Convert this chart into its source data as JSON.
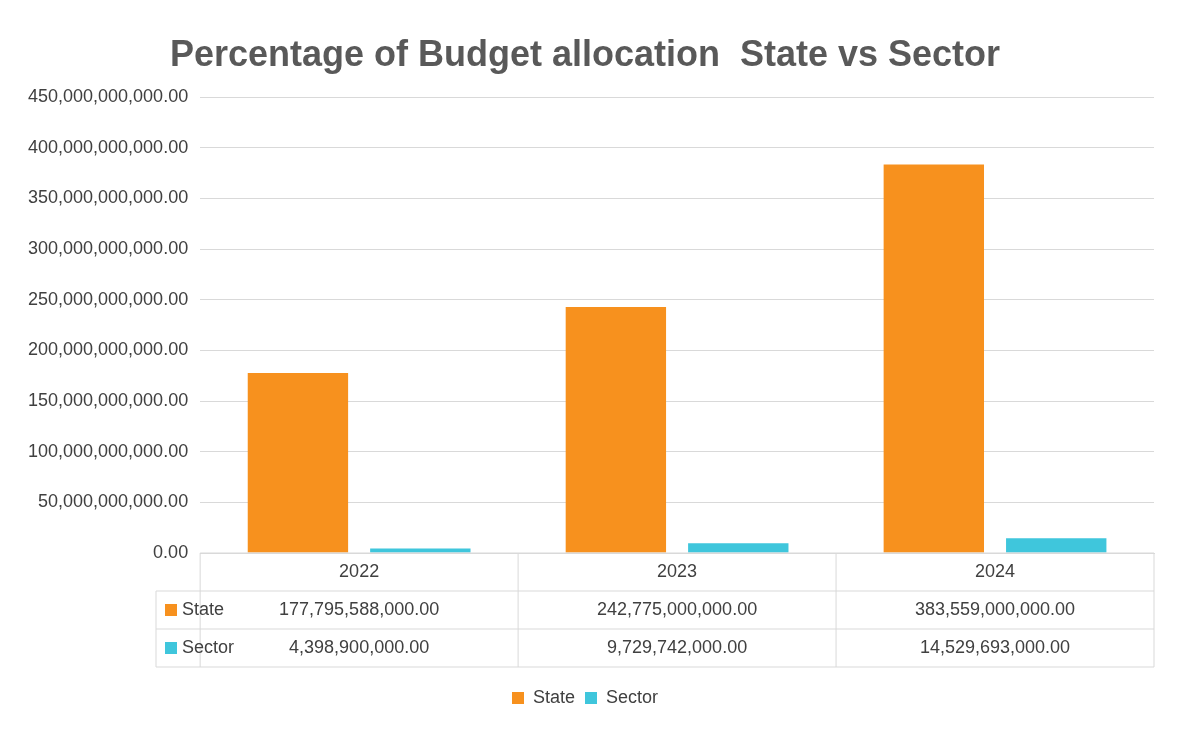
{
  "chart_data": {
    "type": "bar",
    "title": "Percentage of Budget allocation  State vs Sector",
    "categories": [
      "2022",
      "2023",
      "2024"
    ],
    "series": [
      {
        "name": "State",
        "color": "#f7911e",
        "values": [
          177795588000,
          242775000000,
          383559000000
        ],
        "value_labels": [
          "177,795,588,000.00",
          "242,775,000,000.00",
          "383,559,000,000.00"
        ]
      },
      {
        "name": "Sector",
        "color": "#3fc6dc",
        "values": [
          4398900000,
          9729742000,
          14529693000
        ],
        "value_labels": [
          "4,398,900,000.00",
          "9,729,742,000.00",
          "14,529,693,000.00"
        ]
      }
    ],
    "ylim": [
      0,
      450000000000
    ],
    "yticks": [
      {
        "value": 0,
        "label": "0.00"
      },
      {
        "value": 50000000000,
        "label": "50,000,000,000.00"
      },
      {
        "value": 100000000000,
        "label": "100,000,000,000.00"
      },
      {
        "value": 150000000000,
        "label": "150,000,000,000.00"
      },
      {
        "value": 200000000000,
        "label": "200,000,000,000.00"
      },
      {
        "value": 250000000000,
        "label": "250,000,000,000.00"
      },
      {
        "value": 300000000000,
        "label": "300,000,000,000.00"
      },
      {
        "value": 350000000000,
        "label": "350,000,000,000.00"
      },
      {
        "value": 400000000000,
        "label": "400,000,000,000.00"
      },
      {
        "value": 450000000000,
        "label": "450,000,000,000.00"
      }
    ],
    "grid": "y",
    "legend": "bottom"
  }
}
